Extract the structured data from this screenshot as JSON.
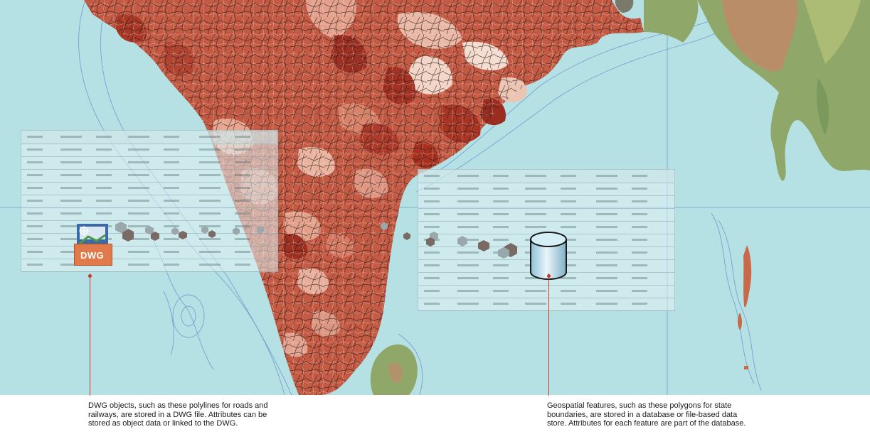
{
  "dwg_icon": {
    "label": "DWG",
    "icon": "dwg-file-icon"
  },
  "database_icon": {
    "icon": "database-cylinder-icon"
  },
  "captions": {
    "dwg": "DWG objects, such as these polylines for roads and railways, are stored in a DWG file. Attributes can be stored as object data or linked to the DWG.",
    "geospatial": "Geospatial features, such as these polygons for state boundaries, are stored in a database or file-based data store. Attributes for each feature are part of the database."
  },
  "colors": {
    "ocean": "#b6e1e4",
    "land_green": "#8fa86a",
    "state_fill_dark": "#b0362a",
    "state_fill_light": "#f3d6c8",
    "callout": "#c0392b"
  }
}
